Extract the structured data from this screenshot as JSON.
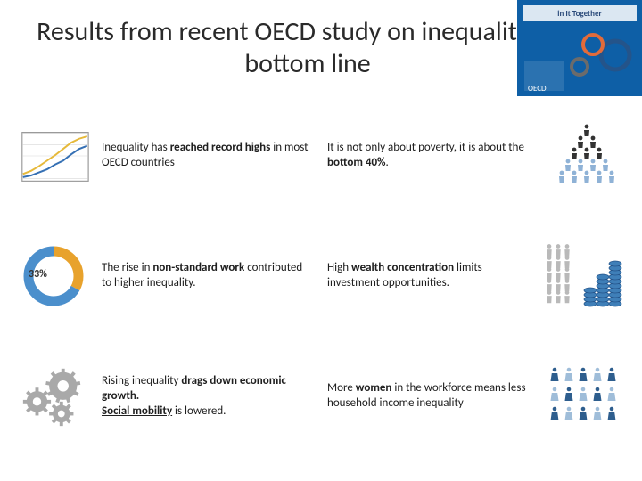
{
  "title": "Results from recent OECD study on inequality: the bottom line",
  "corner_logo": {
    "bg_color": "#0e5fa6",
    "accent_color": "#e26b3a",
    "gear_color": "#6b6b6b"
  },
  "cells": [
    {
      "id": "c1",
      "icon_type": "chart",
      "text_html": "Inequality has <b>reached record highs</b> in most OECD countries",
      "chart": {
        "frame_color": "#9a9a9a",
        "grid_color": "#d7d7d7",
        "series": [
          {
            "color": "#e6b93a",
            "points": [
              0,
              8,
              10,
              12,
              20,
              18,
              30,
              25,
              40,
              32,
              50,
              40,
              60,
              48,
              70,
              53,
              80,
              56
            ]
          },
          {
            "color": "#3570b4",
            "points": [
              0,
              4,
              10,
              6,
              20,
              10,
              30,
              14,
              40,
              20,
              50,
              25,
              60,
              33,
              70,
              40,
              80,
              44
            ]
          }
        ]
      }
    },
    {
      "id": "c2",
      "icon_type": "pyramid",
      "text_html": "It is not only about poverty, it is about the <b>bottom 40%</b>.",
      "pyramid": {
        "top_color": "#333333",
        "bottom_color": "#8fb2d6",
        "rows": [
          1,
          2,
          3,
          4,
          5
        ]
      }
    },
    {
      "id": "c3",
      "icon_type": "donut",
      "text_html": "The rise in <b>non-standard work</b> contributed to higher inequality.",
      "donut": {
        "value_label": "33%",
        "segments": [
          {
            "color": "#e8a22c",
            "pct": 33
          },
          {
            "color": "#4b8fcc",
            "pct": 67
          }
        ],
        "thickness": 11
      }
    },
    {
      "id": "c4",
      "icon_type": "wealth",
      "text_html": "High <b>wealth concentration</b> limits investment opportunities.",
      "wealth": {
        "person_color": "#b9b9b9",
        "coin_colors": [
          "#3f7fb8",
          "#24548a"
        ]
      }
    },
    {
      "id": "c5",
      "icon_type": "gears",
      "text_html": "Rising inequality <b>drags down economic growth.</b>\n<b><u>Social mobility</u></b> is lowered.",
      "gears": {
        "color": "#a9a9a9"
      }
    },
    {
      "id": "c6",
      "icon_type": "women",
      "text_html": "More <b>women</b> in the workforce means less household income inequality",
      "women": {
        "color_a": "#2e5e8e",
        "color_b": "#9fbdd9"
      }
    }
  ]
}
